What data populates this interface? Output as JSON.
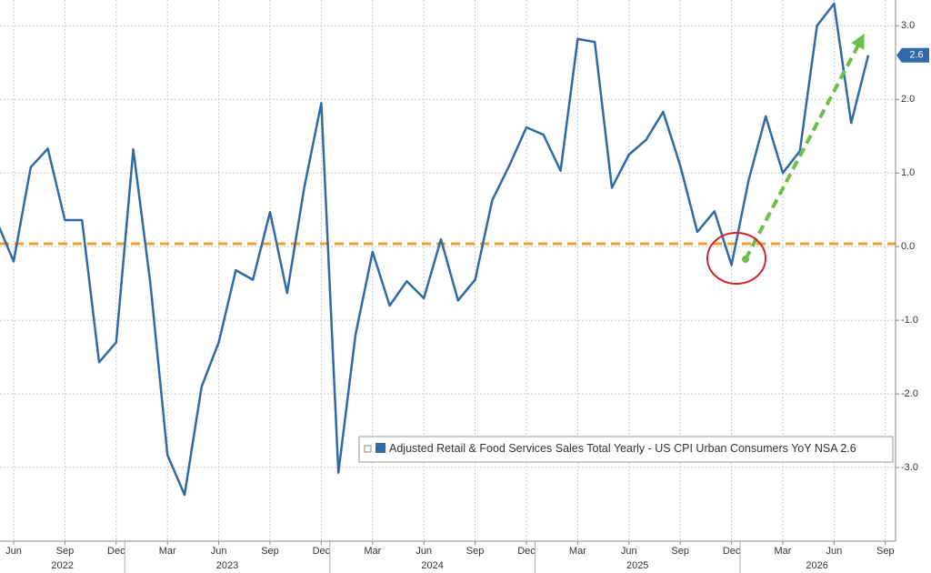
{
  "chart_data": {
    "type": "line",
    "categories": [
      null,
      "Jun",
      null,
      null,
      "Sep",
      null,
      null,
      "Dec",
      null,
      null,
      "Mar",
      null,
      null,
      "Jun",
      null,
      null,
      "Sep",
      null,
      null,
      "Dec",
      null,
      null,
      "Mar",
      null,
      null,
      "Jun",
      null,
      null,
      "Sep",
      null,
      null,
      "Dec",
      null,
      null,
      "Mar",
      null,
      null,
      "Jun",
      null,
      null,
      "Sep",
      null,
      null,
      "Dec",
      null,
      null,
      "Mar",
      null,
      null,
      "Jun",
      null,
      null,
      "Sep"
    ],
    "years": [
      "2022",
      "2023",
      "2024",
      "2025",
      "2026"
    ],
    "series": [
      {
        "name": "Adjusted Retail & Food Services Sales Total Yearly - US CPI Urban Consumers YoY NSA",
        "color": "#2f6aa8",
        "values": [
          0.35,
          -0.2,
          1.08,
          1.33,
          0.36,
          0.36,
          -1.57,
          -1.3,
          1.32,
          -0.5,
          -2.83,
          -3.37,
          -1.9,
          -1.3,
          -0.32,
          -0.45,
          0.47,
          -0.63,
          0.8,
          1.95,
          -3.07,
          -1.2,
          -0.07,
          -0.8,
          -0.47,
          -0.7,
          0.1,
          -0.73,
          -0.45,
          0.63,
          1.1,
          1.62,
          1.52,
          1.03,
          2.82,
          2.78,
          0.8,
          1.25,
          1.45,
          1.83,
          1.1,
          0.2,
          0.48,
          -0.25,
          0.9,
          1.77,
          1.0,
          1.3,
          3.0,
          3.3,
          1.68,
          2.6,
          null
        ]
      }
    ],
    "ylim": [
      -4.0,
      3.35
    ],
    "yticks": [
      {
        "value": 3,
        "label": "3.0"
      },
      {
        "value": 2,
        "label": "2.0"
      },
      {
        "value": 1,
        "label": "1.0"
      },
      {
        "value": 0,
        "label": "0.0"
      },
      {
        "value": -1,
        "label": "-1.0"
      },
      {
        "value": -2,
        "label": "-2.0"
      },
      {
        "value": -3,
        "label": "-3.0"
      }
    ],
    "reference_line": {
      "value": 0.04,
      "color": "#f0a22e"
    },
    "grid": true
  }
}
